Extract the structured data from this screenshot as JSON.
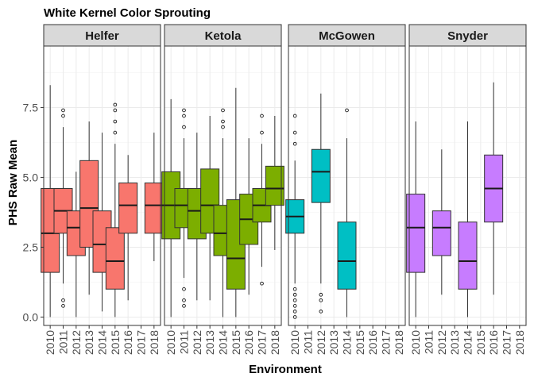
{
  "chart_data": {
    "type": "boxplot",
    "title": "White Kernel Color Sprouting",
    "xlabel": "Environment",
    "ylabel": "PHS Raw Mean",
    "ylim": [
      -0.3,
      9.7
    ],
    "yticks": [
      0.0,
      2.5,
      5.0,
      7.5
    ],
    "ytick_labels": [
      "0.0",
      "2.5",
      "5.0",
      "7.5"
    ],
    "categories": [
      "2010",
      "2011",
      "2012",
      "2013",
      "2014",
      "2015",
      "2016",
      "2017",
      "2018"
    ],
    "grid": true,
    "legend": "none",
    "facets": [
      {
        "name": "Helfer",
        "fill": "#F8766D",
        "boxes": [
          {
            "x": "2010",
            "whisker_low": 0.0,
            "q1": 1.6,
            "median": 3.0,
            "q3": 4.6,
            "whisker_high": 8.3,
            "outliers": []
          },
          {
            "x": "2011",
            "whisker_low": 1.2,
            "q1": 3.0,
            "median": 3.8,
            "q3": 4.6,
            "whisker_high": 6.8,
            "outliers": [
              0.4,
              0.6,
              7.2,
              7.4
            ]
          },
          {
            "x": "2012",
            "whisker_low": 0.0,
            "q1": 2.2,
            "median": 3.2,
            "q3": 3.8,
            "whisker_high": 5.2,
            "outliers": []
          },
          {
            "x": "2013",
            "whisker_low": 0.8,
            "q1": 2.5,
            "median": 3.9,
            "q3": 5.6,
            "whisker_high": 7.0,
            "outliers": []
          },
          {
            "x": "2014",
            "whisker_low": 0.2,
            "q1": 1.6,
            "median": 2.6,
            "q3": 3.8,
            "whisker_high": 6.6,
            "outliers": []
          },
          {
            "x": "2015",
            "whisker_low": 0.0,
            "q1": 1.0,
            "median": 2.0,
            "q3": 3.2,
            "whisker_high": 6.2,
            "outliers": [
              6.6,
              7.0,
              7.4,
              7.6
            ]
          },
          {
            "x": "2016",
            "whisker_low": 0.6,
            "q1": 3.0,
            "median": 4.0,
            "q3": 4.8,
            "whisker_high": 5.8,
            "outliers": []
          },
          {
            "x": "2018",
            "whisker_low": 2.0,
            "q1": 3.0,
            "median": 4.0,
            "q3": 4.8,
            "whisker_high": 6.6,
            "outliers": []
          }
        ]
      },
      {
        "name": "Ketola",
        "fill": "#7CAE00",
        "boxes": [
          {
            "x": "2010",
            "whisker_low": 0.0,
            "q1": 2.8,
            "median": 4.0,
            "q3": 5.2,
            "whisker_high": 7.8,
            "outliers": []
          },
          {
            "x": "2011",
            "whisker_low": 1.4,
            "q1": 3.2,
            "median": 4.0,
            "q3": 4.6,
            "whisker_high": 6.4,
            "outliers": [
              0.4,
              0.6,
              1.0,
              6.8,
              7.2,
              7.4
            ]
          },
          {
            "x": "2012",
            "whisker_low": 0.6,
            "q1": 2.8,
            "median": 3.8,
            "q3": 4.6,
            "whisker_high": 6.6,
            "outliers": []
          },
          {
            "x": "2013",
            "whisker_low": 0.6,
            "q1": 3.0,
            "median": 4.0,
            "q3": 5.3,
            "whisker_high": 7.2,
            "outliers": []
          },
          {
            "x": "2014",
            "whisker_low": 0.0,
            "q1": 2.2,
            "median": 3.0,
            "q3": 4.0,
            "whisker_high": 6.4,
            "outliers": [
              6.8,
              7.0,
              7.4
            ]
          },
          {
            "x": "2015",
            "whisker_low": 0.0,
            "q1": 1.0,
            "median": 2.1,
            "q3": 4.2,
            "whisker_high": 8.2,
            "outliers": []
          },
          {
            "x": "2016",
            "whisker_low": 0.8,
            "q1": 2.6,
            "median": 3.5,
            "q3": 4.4,
            "whisker_high": 6.4,
            "outliers": []
          },
          {
            "x": "2017",
            "whisker_low": 1.8,
            "q1": 3.4,
            "median": 4.0,
            "q3": 4.6,
            "whisker_high": 6.2,
            "outliers": [
              1.2,
              6.6,
              7.2
            ]
          },
          {
            "x": "2018",
            "whisker_low": 2.4,
            "q1": 4.0,
            "median": 4.6,
            "q3": 5.4,
            "whisker_high": 7.2,
            "outliers": []
          }
        ]
      },
      {
        "name": "McGowen",
        "fill": "#00BFC4",
        "boxes": [
          {
            "x": "2010",
            "whisker_low": 1.2,
            "q1": 3.0,
            "median": 3.6,
            "q3": 4.2,
            "whisker_high": 5.6,
            "outliers": [
              0.0,
              0.2,
              0.4,
              0.6,
              0.8,
              1.0,
              6.2,
              6.6,
              7.2
            ]
          },
          {
            "x": "2012",
            "whisker_low": 1.2,
            "q1": 4.1,
            "median": 5.2,
            "q3": 6.0,
            "whisker_high": 8.0,
            "outliers": [
              0.2,
              0.6,
              0.8
            ]
          },
          {
            "x": "2014",
            "whisker_low": 0.0,
            "q1": 1.0,
            "median": 2.0,
            "q3": 3.4,
            "whisker_high": 6.4,
            "outliers": [
              7.4
            ]
          }
        ]
      },
      {
        "name": "Snyder",
        "fill": "#C77CFF",
        "boxes": [
          {
            "x": "2010",
            "whisker_low": 0.0,
            "q1": 1.6,
            "median": 3.2,
            "q3": 4.4,
            "whisker_high": 7.0,
            "outliers": []
          },
          {
            "x": "2012",
            "whisker_low": 0.8,
            "q1": 2.2,
            "median": 3.2,
            "q3": 3.8,
            "whisker_high": 6.0,
            "outliers": []
          },
          {
            "x": "2014",
            "whisker_low": 0.0,
            "q1": 1.0,
            "median": 2.0,
            "q3": 3.4,
            "whisker_high": 7.0,
            "outliers": []
          },
          {
            "x": "2016",
            "whisker_low": 0.8,
            "q1": 3.4,
            "median": 4.6,
            "q3": 5.8,
            "whisker_high": 8.4,
            "outliers": []
          }
        ]
      }
    ]
  },
  "colors": {
    "strip_background": "#D9D9D9",
    "panel_border": "#333333",
    "grid_major": "#EBEBEB",
    "grid_minor": "#F5F5F5"
  }
}
